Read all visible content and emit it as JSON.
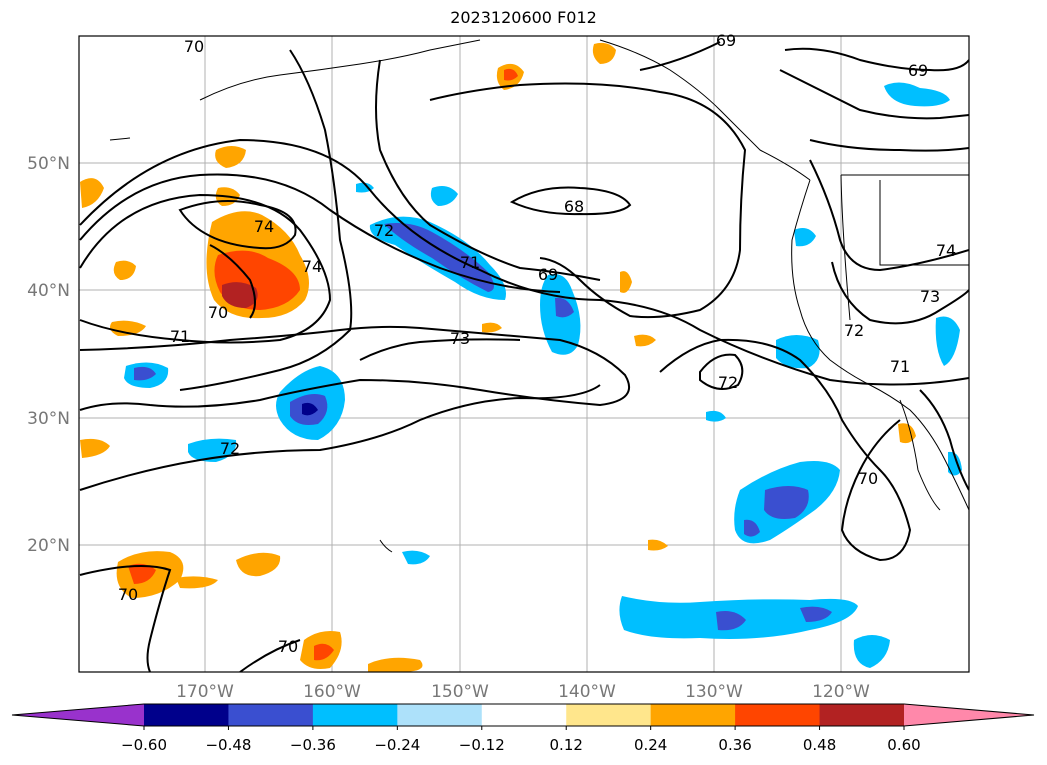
{
  "title": "2023120600 F012",
  "lat_labels": [
    "50°N",
    "40°N",
    "30°N",
    "20°N"
  ],
  "lon_labels": [
    "170°W",
    "160°W",
    "150°W",
    "140°W",
    "130°W",
    "120°W"
  ],
  "contour_labels": [
    {
      "text": "70"
    },
    {
      "text": "69"
    },
    {
      "text": "69"
    },
    {
      "text": "68"
    },
    {
      "text": "74"
    },
    {
      "text": "72"
    },
    {
      "text": "74"
    },
    {
      "text": "71"
    },
    {
      "text": "69"
    },
    {
      "text": "71"
    },
    {
      "text": "73"
    },
    {
      "text": "73"
    },
    {
      "text": "72"
    },
    {
      "text": "74"
    },
    {
      "text": "72"
    },
    {
      "text": "71"
    },
    {
      "text": "72"
    },
    {
      "text": "70"
    },
    {
      "text": "70"
    },
    {
      "text": "70"
    },
    {
      "text": "70"
    }
  ],
  "colorbar": {
    "ticks": [
      "−0.60",
      "−0.48",
      "−0.36",
      "−0.24",
      "−0.12",
      "0.12",
      "0.24",
      "0.36",
      "0.48",
      "0.60"
    ],
    "colors": [
      "#9932cc",
      "#00008b",
      "#3a4fd0",
      "#00bfff",
      "#ade1fa",
      "#ffffff",
      "#ffe68c",
      "#ffa500",
      "#ff4500",
      "#b22222",
      "#ff88aa"
    ]
  }
}
